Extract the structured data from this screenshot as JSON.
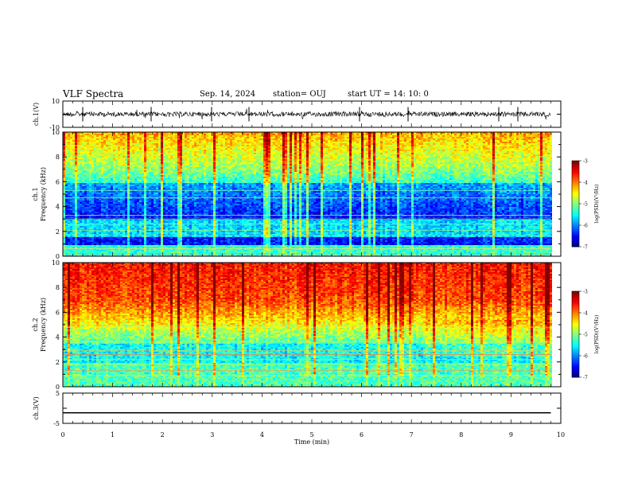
{
  "header": {
    "title": "VLF Spectra",
    "date": "Sep. 14, 2024",
    "station": "station= OUJ",
    "start": "start  UT  =   14: 10: 0"
  },
  "chart_data": [
    {
      "type": "line",
      "name": "waveform-ch1",
      "ylabel": "ch.1(V)",
      "ylim": [
        -10,
        10
      ],
      "ytick_labels": [
        "10",
        "-10"
      ],
      "baseline": 0,
      "x_range": [
        0,
        10
      ],
      "signal_end": 9.8
    },
    {
      "type": "heatmap",
      "name": "spectrogram-ch1",
      "ylabel_line1": "ch.1",
      "ylabel_line2": "Frequency  (kHz)",
      "ylim": [
        0,
        10
      ],
      "ytick_labels": [
        "0",
        "2",
        "4",
        "6",
        "8",
        "10"
      ],
      "x_range": [
        0,
        10
      ],
      "signal_end": 9.8,
      "colorbar": {
        "label": "log(PSD)(V²/Hz)",
        "range": [
          -7,
          -3
        ],
        "tick_labels": [
          "-3",
          "-4",
          "-5",
          "-6",
          "-7"
        ]
      }
    },
    {
      "type": "heatmap",
      "name": "spectrogram-ch2",
      "ylabel_line1": "ch.2",
      "ylabel_line2": "Frequency  (kHz)",
      "ylim": [
        0,
        10
      ],
      "ytick_labels": [
        "0",
        "2",
        "4",
        "6",
        "8",
        "10"
      ],
      "x_range": [
        0,
        10
      ],
      "signal_end": 9.8,
      "colorbar": {
        "label": "log(PSD)(V²/Hz)",
        "range": [
          -7,
          -3
        ],
        "tick_labels": [
          "-3",
          "-4",
          "-5",
          "-6",
          "-7"
        ]
      }
    },
    {
      "type": "line",
      "name": "waveform-ch3",
      "ylabel": "ch.3(V)",
      "ylim": [
        -5,
        5
      ],
      "ytick_labels": [
        "5",
        "-5"
      ],
      "baseline": -1.5,
      "x_range": [
        0,
        10
      ],
      "signal_end": 9.8,
      "xlabel": "Time  (min)",
      "xtick_labels": [
        "0",
        "1",
        "2",
        "3",
        "4",
        "5",
        "6",
        "7",
        "8",
        "9",
        "10"
      ]
    }
  ]
}
